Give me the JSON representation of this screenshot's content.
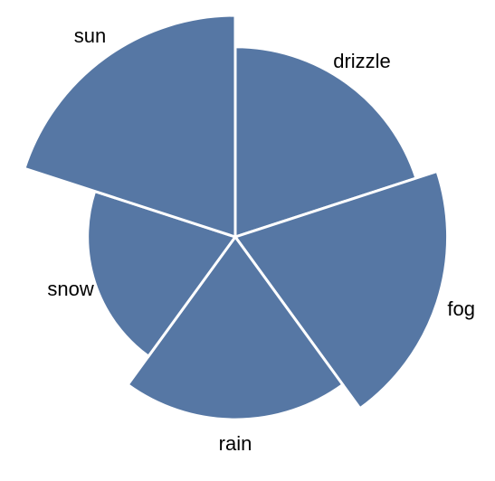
{
  "chart_data": {
    "type": "pie",
    "subtype": "polar-area",
    "categories": [
      "drizzle",
      "fog",
      "rain",
      "snow",
      "sun"
    ],
    "values": [
      53,
      66,
      49,
      32,
      72
    ],
    "slice_color": "#5677a4",
    "separator_color": "#ffffff",
    "grid": false,
    "legend": "none"
  }
}
